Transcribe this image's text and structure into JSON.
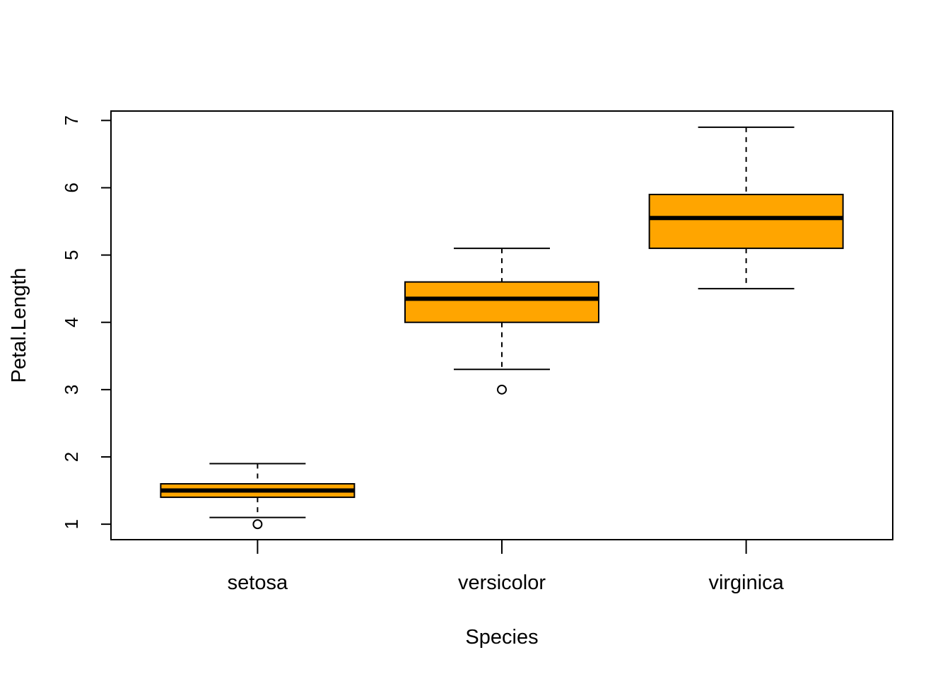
{
  "chart_data": {
    "type": "boxplot",
    "title": "",
    "xlabel": "Species",
    "ylabel": "Petal.Length",
    "ylim": [
      0.77,
      7.14
    ],
    "yticks": [
      1,
      2,
      3,
      4,
      5,
      6,
      7
    ],
    "grid": false,
    "legend": "none",
    "box_color": "#FFA500",
    "line_color": "#000000",
    "categories": [
      "setosa",
      "versicolor",
      "virginica"
    ],
    "boxes": [
      {
        "category": "setosa",
        "lower_whisker": 1.1,
        "q1": 1.4,
        "median": 1.5,
        "q3": 1.6,
        "upper_whisker": 1.9,
        "outliers": [
          1.0
        ]
      },
      {
        "category": "versicolor",
        "lower_whisker": 3.3,
        "q1": 4.0,
        "median": 4.35,
        "q3": 4.6,
        "upper_whisker": 5.1,
        "outliers": [
          3.0
        ]
      },
      {
        "category": "virginica",
        "lower_whisker": 4.5,
        "q1": 5.1,
        "median": 5.55,
        "q3": 5.9,
        "upper_whisker": 6.9,
        "outliers": []
      }
    ]
  }
}
